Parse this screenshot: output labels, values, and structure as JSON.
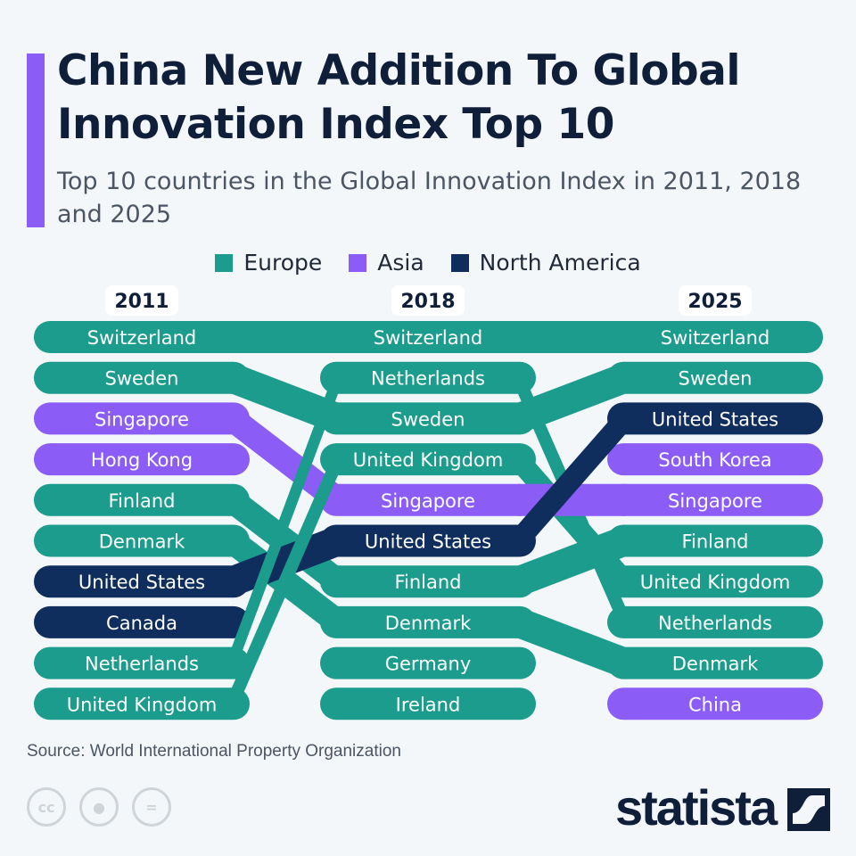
{
  "header": {
    "title": "China New Addition To Global Innovation Index Top 10",
    "subtitle": "Top 10 countries in the Global Innovation Index in 2011, 2018 and 2025"
  },
  "legend": [
    {
      "label": "Europe",
      "color": "#1b9c8c"
    },
    {
      "label": "Asia",
      "color": "#8b5cf6"
    },
    {
      "label": "North America",
      "color": "#0f2e5e"
    }
  ],
  "chart_data": {
    "type": "bump",
    "title": "China New Addition To Global Innovation Index Top 10",
    "years": [
      "2011",
      "2018",
      "2025"
    ],
    "region_colors": {
      "Europe": "#1b9c8c",
      "Asia": "#8b5cf6",
      "North America": "#0f2e5e"
    },
    "rankings": [
      [
        {
          "rank": 1,
          "country": "Switzerland",
          "region": "Europe"
        },
        {
          "rank": 2,
          "country": "Sweden",
          "region": "Europe"
        },
        {
          "rank": 3,
          "country": "Singapore",
          "region": "Asia"
        },
        {
          "rank": 4,
          "country": "Hong Kong",
          "region": "Asia"
        },
        {
          "rank": 5,
          "country": "Finland",
          "region": "Europe"
        },
        {
          "rank": 6,
          "country": "Denmark",
          "region": "Europe"
        },
        {
          "rank": 7,
          "country": "United States",
          "region": "North America"
        },
        {
          "rank": 8,
          "country": "Canada",
          "region": "North America"
        },
        {
          "rank": 9,
          "country": "Netherlands",
          "region": "Europe"
        },
        {
          "rank": 10,
          "country": "United Kingdom",
          "region": "Europe"
        }
      ],
      [
        {
          "rank": 1,
          "country": "Switzerland",
          "region": "Europe"
        },
        {
          "rank": 2,
          "country": "Netherlands",
          "region": "Europe"
        },
        {
          "rank": 3,
          "country": "Sweden",
          "region": "Europe"
        },
        {
          "rank": 4,
          "country": "United Kingdom",
          "region": "Europe"
        },
        {
          "rank": 5,
          "country": "Singapore",
          "region": "Asia"
        },
        {
          "rank": 6,
          "country": "United States",
          "region": "North America"
        },
        {
          "rank": 7,
          "country": "Finland",
          "region": "Europe"
        },
        {
          "rank": 8,
          "country": "Denmark",
          "region": "Europe"
        },
        {
          "rank": 9,
          "country": "Germany",
          "region": "Europe"
        },
        {
          "rank": 10,
          "country": "Ireland",
          "region": "Europe"
        }
      ],
      [
        {
          "rank": 1,
          "country": "Switzerland",
          "region": "Europe"
        },
        {
          "rank": 2,
          "country": "Sweden",
          "region": "Europe"
        },
        {
          "rank": 3,
          "country": "United States",
          "region": "North America"
        },
        {
          "rank": 4,
          "country": "South Korea",
          "region": "Asia"
        },
        {
          "rank": 5,
          "country": "Singapore",
          "region": "Asia"
        },
        {
          "rank": 6,
          "country": "Finland",
          "region": "Europe"
        },
        {
          "rank": 7,
          "country": "United Kingdom",
          "region": "Europe"
        },
        {
          "rank": 8,
          "country": "Netherlands",
          "region": "Europe"
        },
        {
          "rank": 9,
          "country": "Denmark",
          "region": "Europe"
        },
        {
          "rank": 10,
          "country": "China",
          "region": "Asia"
        }
      ]
    ]
  },
  "footer": {
    "source": "Source: World International Property Organization",
    "logo": "statista",
    "license_icons": [
      "cc-icon",
      "attribution-icon",
      "no-derivatives-icon"
    ]
  }
}
